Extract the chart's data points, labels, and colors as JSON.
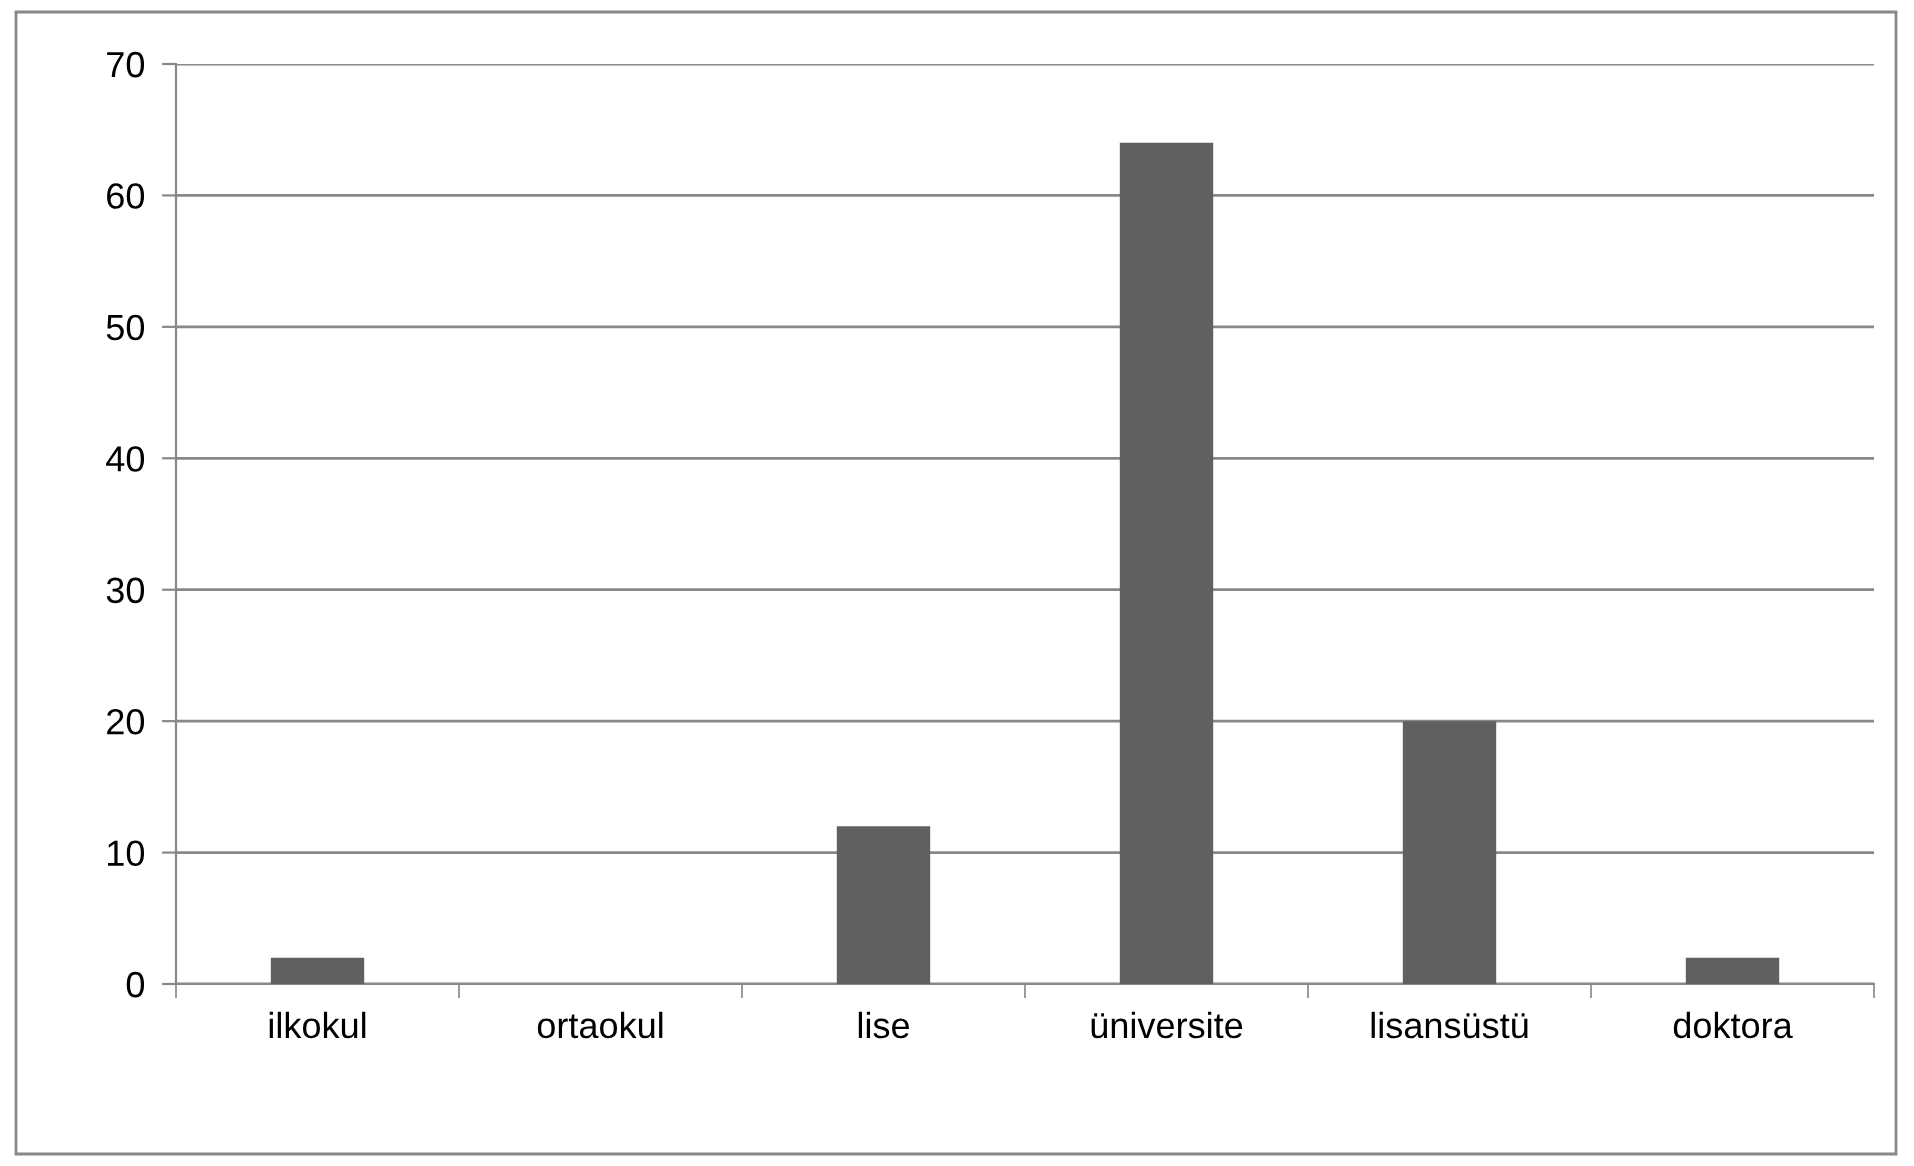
{
  "chart_data": {
    "type": "bar",
    "categories": [
      "ilkokul",
      "ortaokul",
      "lise",
      "üniversite",
      "lisansüstü",
      "doktora"
    ],
    "values": [
      2,
      0,
      12,
      64,
      20,
      2
    ],
    "color": "#606060",
    "ylim": [
      0,
      70
    ],
    "yticks": [
      0,
      10,
      20,
      30,
      40,
      50,
      60,
      70
    ],
    "grid": "y",
    "legend": false
  }
}
